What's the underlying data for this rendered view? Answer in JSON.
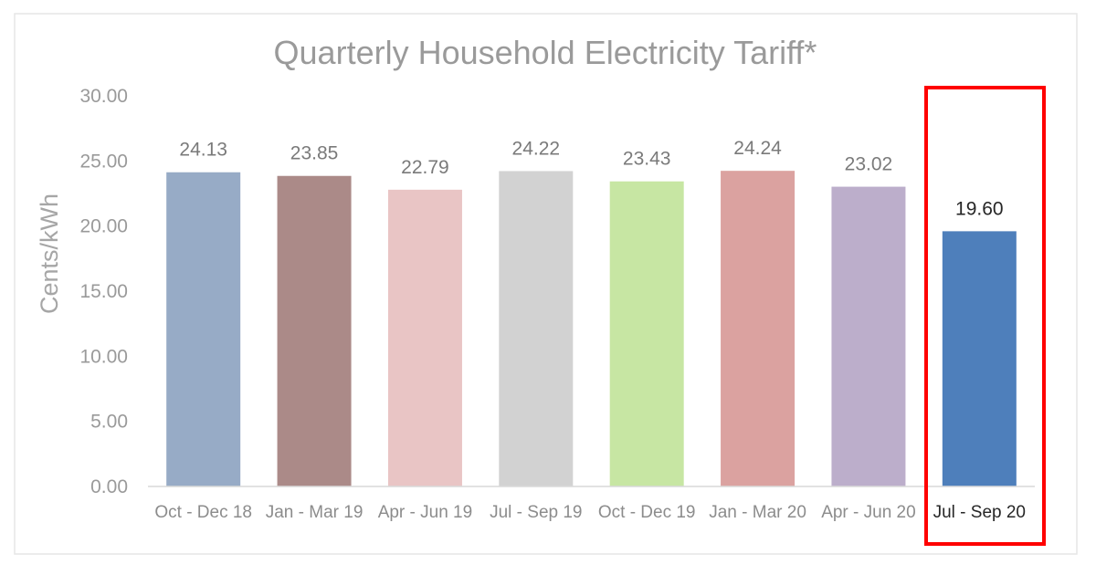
{
  "chart_data": {
    "type": "bar",
    "title": "Quarterly Household Electricity Tariff*",
    "xlabel": "",
    "ylabel": "Cents/kWh",
    "ylim": [
      0,
      30
    ],
    "yticks": [
      "0.00",
      "5.00",
      "10.00",
      "15.00",
      "20.00",
      "25.00",
      "30.00"
    ],
    "grid": false,
    "legend": "none",
    "categories": [
      "Oct - Dec 18",
      "Jan - Mar 19",
      "Apr - Jun 19",
      "Jul - Sep 19",
      "Oct - Dec 19",
      "Jan - Mar 20",
      "Apr - Jun 20",
      "Jul - Sep 20"
    ],
    "values": [
      24.13,
      23.85,
      22.79,
      24.22,
      23.43,
      24.24,
      23.02,
      19.6
    ],
    "data_labels": [
      "24.13",
      "23.85",
      "22.79",
      "24.22",
      "23.43",
      "24.24",
      "23.02",
      "19.60"
    ],
    "colors": [
      "#97abc6",
      "#ab8a88",
      "#e9c5c5",
      "#d2d2d2",
      "#c7e6a3",
      "#dba2a0",
      "#bcaecb",
      "#4e7fbb"
    ],
    "highlight": {
      "category": "Jul - Sep 20",
      "color": "#ff0000"
    }
  }
}
